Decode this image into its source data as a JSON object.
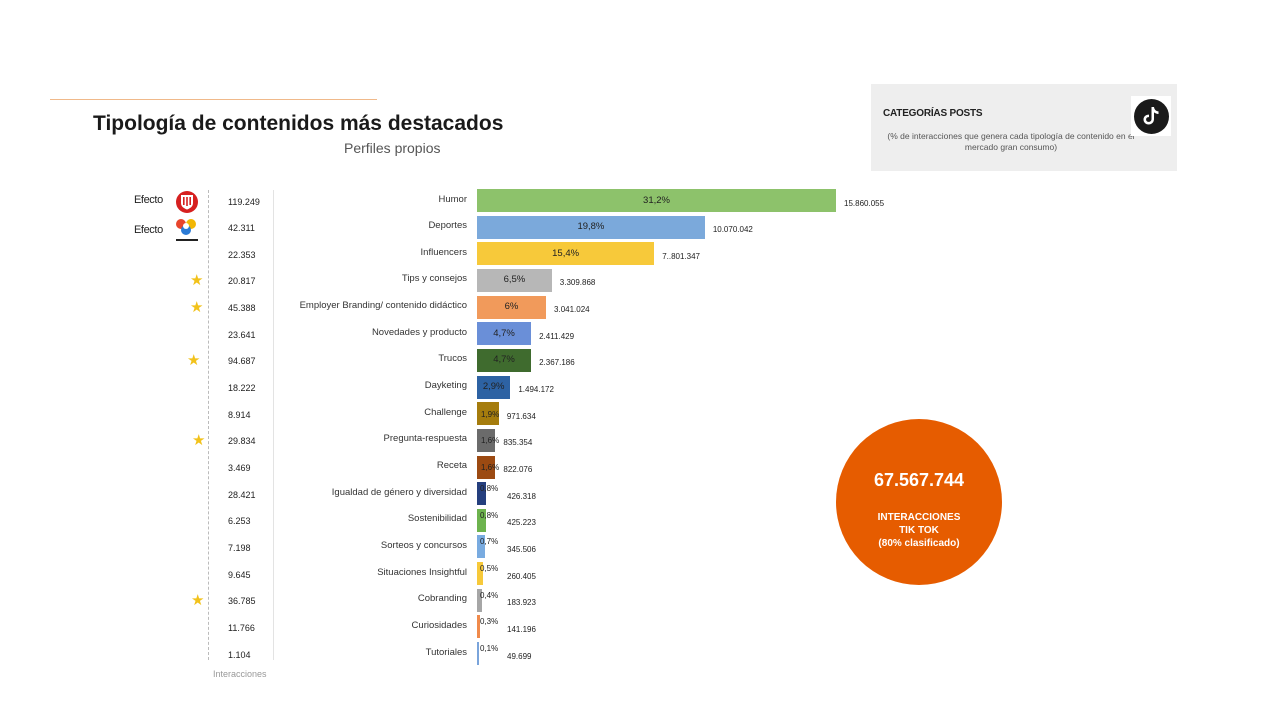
{
  "header": {
    "title": "Tipología de contenidos más destacados",
    "subtitle": "Perfiles propios"
  },
  "categories_box": {
    "title": "CATEGORÍAS POSTS",
    "description": "(% de interacciones que genera cada tipología de contenido en el mercado gran consumo)",
    "icon": "tiktok-icon"
  },
  "efecto_labels": [
    "Efecto",
    "Efecto"
  ],
  "interactions_caption": "Interacciones",
  "summary": {
    "total": "67.567.744",
    "line1": "INTERACCIONES",
    "line2": "TIK TOK",
    "line3": "(80% clasificado)",
    "color": "#e65c00"
  },
  "colors": {
    "accent_line": "#f0b98a",
    "star": "#f2c21b"
  },
  "chart_data": {
    "type": "bar",
    "orientation": "horizontal",
    "rows": [
      {
        "category": "Humor",
        "pct": 31.2,
        "pct_label": "31,2%",
        "value": 15860055,
        "value_label": "15.860.055",
        "interactions": "119.249",
        "color": "#8dc26b",
        "marker": "atm-logo"
      },
      {
        "category": "Deportes",
        "pct": 19.8,
        "pct_label": "19,8%",
        "value": 10070042,
        "value_label": "10.070.042",
        "interactions": "42.311",
        "color": "#7ba9db",
        "marker": "laliga-logo"
      },
      {
        "category": "Influencers",
        "pct": 15.4,
        "pct_label": "15,4%",
        "value": 7801347,
        "value_label": "7..801.347",
        "interactions": "22.353",
        "color": "#f7c93a",
        "marker": ""
      },
      {
        "category": "Tips y consejos",
        "pct": 6.5,
        "pct_label": "6,5%",
        "value": 3309868,
        "value_label": "3.309.868",
        "interactions": "20.817",
        "color": "#b7b7b7",
        "marker": "star"
      },
      {
        "category": "Employer  Branding/ contenido didáctico",
        "pct": 6,
        "pct_label": "6%",
        "value": 3041024,
        "value_label": "3.041.024",
        "interactions": "45.388",
        "color": "#f19a5b",
        "marker": "star"
      },
      {
        "category": "Novedades y producto",
        "pct": 4.7,
        "pct_label": "4,7%",
        "value": 2411429,
        "value_label": "2.411.429",
        "interactions": "23.641",
        "color": "#6a8fd8",
        "marker": ""
      },
      {
        "category": "Trucos",
        "pct": 4.7,
        "pct_label": "4,7%",
        "value": 2367186,
        "value_label": "2.367.186",
        "interactions": "94.687",
        "color": "#3f6b2e",
        "marker": "star"
      },
      {
        "category": "Dayketing",
        "pct": 2.9,
        "pct_label": "2,9%",
        "value": 1494172,
        "value_label": "1.494.172",
        "interactions": "18.222",
        "color": "#2d62a3",
        "marker": ""
      },
      {
        "category": "Challenge",
        "pct": 1.9,
        "pct_label": "1,9%",
        "value": 971634,
        "value_label": "971.634",
        "interactions": "8.914",
        "color": "#a57c0d",
        "marker": ""
      },
      {
        "category": "Pregunta-respuesta",
        "pct": 1.6,
        "pct_label": "1,6%",
        "value": 835354,
        "value_label": "835.354",
        "interactions": "29.834",
        "color": "#6b6b6b",
        "marker": "star"
      },
      {
        "category": "Receta",
        "pct": 1.6,
        "pct_label": "1,6%",
        "value": 822076,
        "value_label": "822.076",
        "interactions": "3.469",
        "color": "#9c4a12",
        "marker": ""
      },
      {
        "category": "Igualdad de género y diversidad",
        "pct": 0.8,
        "pct_label": "0,8%",
        "value": 426318,
        "value_label": "426.318",
        "interactions": "28.421",
        "color": "#253f7e",
        "marker": ""
      },
      {
        "category": "Sostenibilidad",
        "pct": 0.8,
        "pct_label": "0,8%",
        "value": 425223,
        "value_label": "425.223",
        "interactions": "6.253",
        "color": "#6db34e",
        "marker": ""
      },
      {
        "category": "Sorteos y concursos",
        "pct": 0.7,
        "pct_label": "0,7%",
        "value": 345506,
        "value_label": "345.506",
        "interactions": "7.198",
        "color": "#79abe0",
        "marker": ""
      },
      {
        "category": "Situaciones Insightful",
        "pct": 0.5,
        "pct_label": "0,5%",
        "value": 260405,
        "value_label": "260.405",
        "interactions": "9.645",
        "color": "#f7c93a",
        "marker": ""
      },
      {
        "category": "Cobranding",
        "pct": 0.4,
        "pct_label": "0,4%",
        "value": 183923,
        "value_label": "183.923",
        "interactions": "36.785",
        "color": "#a6a6a6",
        "marker": "star"
      },
      {
        "category": "Curiosidades",
        "pct": 0.3,
        "pct_label": "0,3%",
        "value": 141196,
        "value_label": "141.196",
        "interactions": "11.766",
        "color": "#f08a4b",
        "marker": ""
      },
      {
        "category": "Tutoriales",
        "pct": 0.1,
        "pct_label": "0,1%",
        "value": 49699,
        "value_label": "49.699",
        "interactions": "1.104",
        "color": "#7aa4db",
        "marker": ""
      }
    ]
  }
}
